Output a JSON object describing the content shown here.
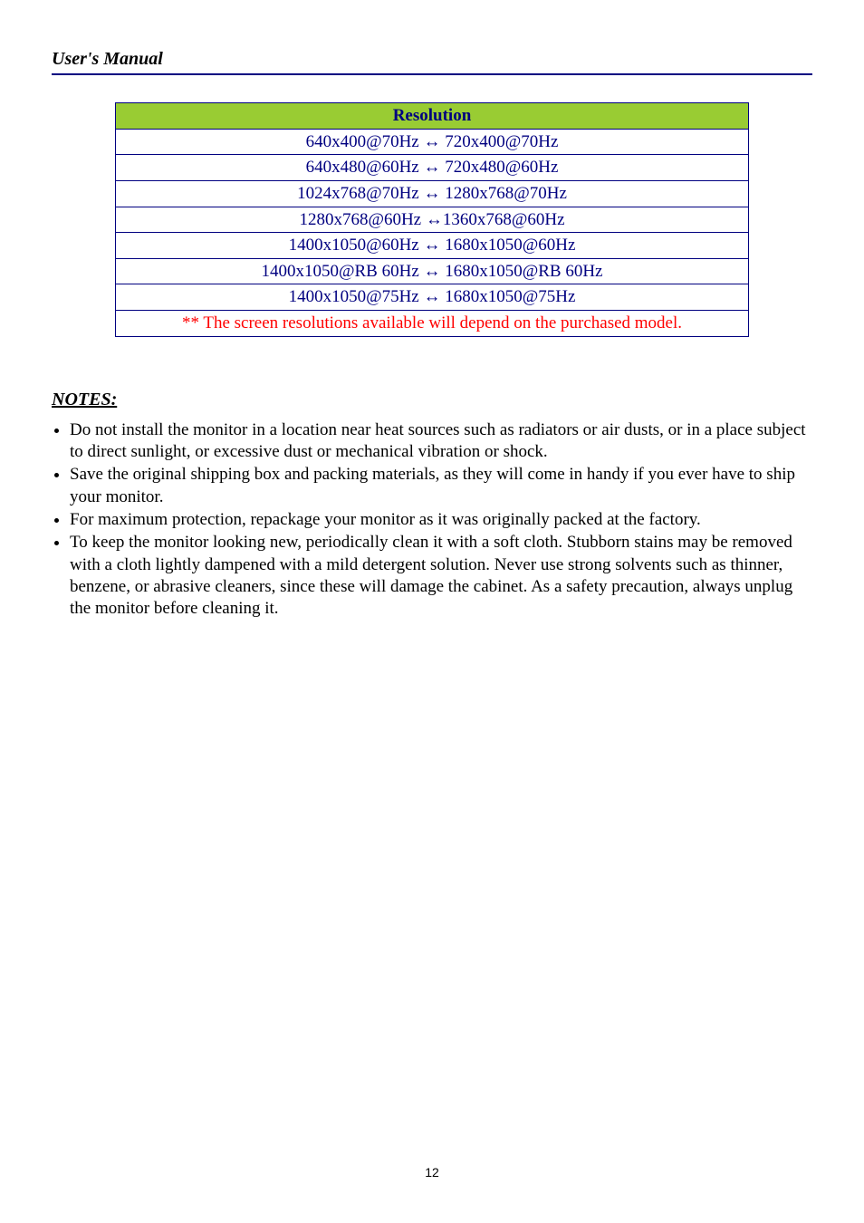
{
  "header": {
    "title": "User's Manual"
  },
  "table": {
    "header_bg": "#99cc33",
    "border_color": "#000080",
    "text_color": "#000080",
    "footnote_color": "#ff0000",
    "header_label": "Resolution",
    "rows": [
      "640x400@70Hz ↔ 720x400@70Hz",
      "640x480@60Hz ↔ 720x480@60Hz",
      "1024x768@70Hz ↔ 1280x768@70Hz",
      "1280x768@60Hz ↔1360x768@60Hz",
      "1400x1050@60Hz ↔ 1680x1050@60Hz",
      "1400x1050@RB 60Hz ↔ 1680x1050@RB 60Hz",
      "1400x1050@75Hz ↔ 1680x1050@75Hz"
    ],
    "footnote": "** The screen resolutions available will depend on the purchased model."
  },
  "notes": {
    "heading": "NOTES:",
    "items": [
      "Do not install the monitor in a location near heat sources such as radiators or air dusts, or in a place subject to direct sunlight, or excessive dust or mechanical vibration or shock.",
      "Save the original shipping box and packing materials, as they will come in handy if you ever have to ship your monitor.",
      "For maximum protection, repackage your monitor as it was originally packed at the factory.",
      "To keep the monitor looking new, periodically clean it with a soft cloth. Stubborn stains may be removed with a cloth lightly dampened with a mild detergent solution. Never use strong solvents such as thinner, benzene, or abrasive cleaners, since these will damage the cabinet. As a safety precaution, always unplug the monitor before cleaning it."
    ]
  },
  "footer": {
    "page_number": "12"
  }
}
